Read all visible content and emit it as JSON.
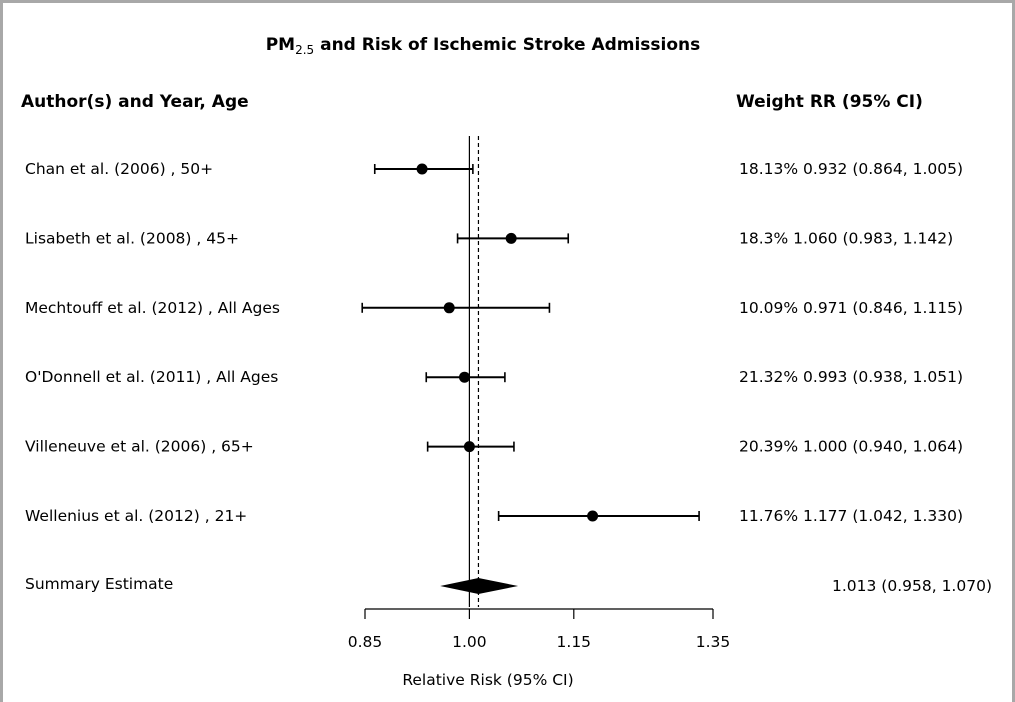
{
  "chart_data": {
    "type": "forest",
    "title": {
      "prefix": "PM",
      "subscript": "2.5",
      "suffix": " and Risk of Ischemic Stroke Admissions"
    },
    "headers": {
      "study": "Author(s) and Year,  Age",
      "weight_rr": "Weight  RR (95% CI)"
    },
    "xlabel": "Relative Risk (95% CI)",
    "xlim": [
      0.85,
      1.35
    ],
    "xticks": [
      0.85,
      1.0,
      1.15,
      1.35
    ],
    "xtick_labels": [
      "0.85",
      "1.00",
      "1.15",
      "1.35"
    ],
    "reference_line": 1.0,
    "summary_line": 1.013,
    "studies": [
      {
        "label": "Chan et al. (2006) ,  50+",
        "weight": "18.13%",
        "rr_text": "0.932 (0.864, 1.005)",
        "rr": 0.932,
        "lo": 0.864,
        "hi": 1.005
      },
      {
        "label": "Lisabeth et al. (2008) ,  45+",
        "weight": "18.3%",
        "rr_text": "1.060 (0.983, 1.142)",
        "rr": 1.06,
        "lo": 0.983,
        "hi": 1.142
      },
      {
        "label": "Mechtouff et al. (2012) ,  All Ages",
        "weight": "10.09%",
        "rr_text": "0.971 (0.846, 1.115)",
        "rr": 0.971,
        "lo": 0.846,
        "hi": 1.115
      },
      {
        "label": "O'Donnell et al. (2011) ,  All Ages",
        "weight": "21.32%",
        "rr_text": "0.993 (0.938, 1.051)",
        "rr": 0.993,
        "lo": 0.938,
        "hi": 1.051
      },
      {
        "label": "Villeneuve et al. (2006) ,  65+",
        "weight": "20.39%",
        "rr_text": "1.000 (0.940, 1.064)",
        "rr": 1.0,
        "lo": 0.94,
        "hi": 1.064
      },
      {
        "label": "Wellenius et al. (2012) ,  21+",
        "weight": "11.76%",
        "rr_text": "1.177 (1.042, 1.330)",
        "rr": 1.177,
        "lo": 1.042,
        "hi": 1.33
      }
    ],
    "summary": {
      "label": "Summary Estimate",
      "rr_text": "1.013 (0.958, 1.070)",
      "rr": 1.013,
      "lo": 0.958,
      "hi": 1.07
    },
    "grid": false,
    "legend": "none"
  }
}
